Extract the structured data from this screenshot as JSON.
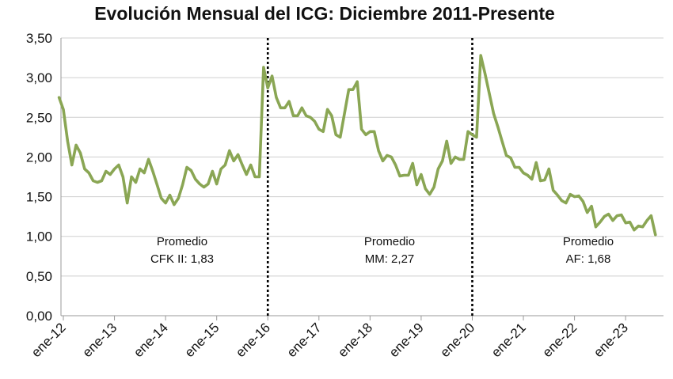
{
  "chart_data": {
    "type": "line",
    "title": "Evolución Mensual del ICG: Diciembre 2011-Presente",
    "xlabel": "",
    "ylabel": "",
    "ylim": [
      0,
      3.5
    ],
    "yticks": [
      "0,00",
      "0,50",
      "1,00",
      "1,50",
      "2,00",
      "2,50",
      "3,00",
      "3,50"
    ],
    "xticks": [
      "ene-12",
      "ene-13",
      "ene-14",
      "ene-15",
      "ene-16",
      "ene-17",
      "ene-18",
      "ene-19",
      "ene-20",
      "ene-21",
      "ene-22",
      "ene-23"
    ],
    "grid": true,
    "line_color": "#8aa654",
    "series": [
      {
        "values": [
          2.75,
          2.6,
          2.2,
          1.9,
          2.15,
          2.05,
          1.85,
          1.8,
          1.7,
          1.68,
          1.7,
          1.82,
          1.78,
          1.85,
          1.9,
          1.75,
          1.42,
          1.75,
          1.68,
          1.85,
          1.8,
          1.97,
          1.82,
          1.65,
          1.48,
          1.42,
          1.52,
          1.4,
          1.48,
          1.65,
          1.87,
          1.83,
          1.72,
          1.66,
          1.62,
          1.66,
          1.82,
          1.66,
          1.85,
          1.9,
          2.08,
          1.95,
          2.03,
          1.9,
          1.78,
          1.9,
          1.75,
          1.75,
          3.13,
          2.87,
          3.02,
          2.75,
          2.62,
          2.62,
          2.7,
          2.52,
          2.52,
          2.62,
          2.52,
          2.5,
          2.45,
          2.35,
          2.32,
          2.6,
          2.52,
          2.28,
          2.25,
          2.55,
          2.85,
          2.85,
          2.95,
          2.35,
          2.28,
          2.32,
          2.32,
          2.08,
          1.95,
          2.02,
          2.0,
          1.9,
          1.76,
          1.77,
          1.77,
          1.92,
          1.65,
          1.78,
          1.6,
          1.53,
          1.62,
          1.85,
          1.95,
          2.2,
          1.92,
          2.0,
          1.97,
          1.97,
          2.32,
          2.28,
          2.25,
          3.28,
          3.05,
          2.8,
          2.55,
          2.38,
          2.2,
          2.02,
          1.99,
          1.87,
          1.87,
          1.8,
          1.77,
          1.72,
          1.93,
          1.7,
          1.71,
          1.85,
          1.58,
          1.52,
          1.45,
          1.42,
          1.53,
          1.5,
          1.51,
          1.44,
          1.3,
          1.38,
          1.12,
          1.18,
          1.25,
          1.28,
          1.2,
          1.26,
          1.27,
          1.17,
          1.18,
          1.08,
          1.13,
          1.12,
          1.2,
          1.26,
          1.02
        ]
      }
    ],
    "annotations": [
      {
        "line1": "Promedio",
        "line2": "CFK II: 1,83"
      },
      {
        "line1": "Promedio",
        "line2": "MM: 2,27"
      },
      {
        "line1": "Promedio",
        "line2": "AF: 1,68"
      }
    ]
  }
}
